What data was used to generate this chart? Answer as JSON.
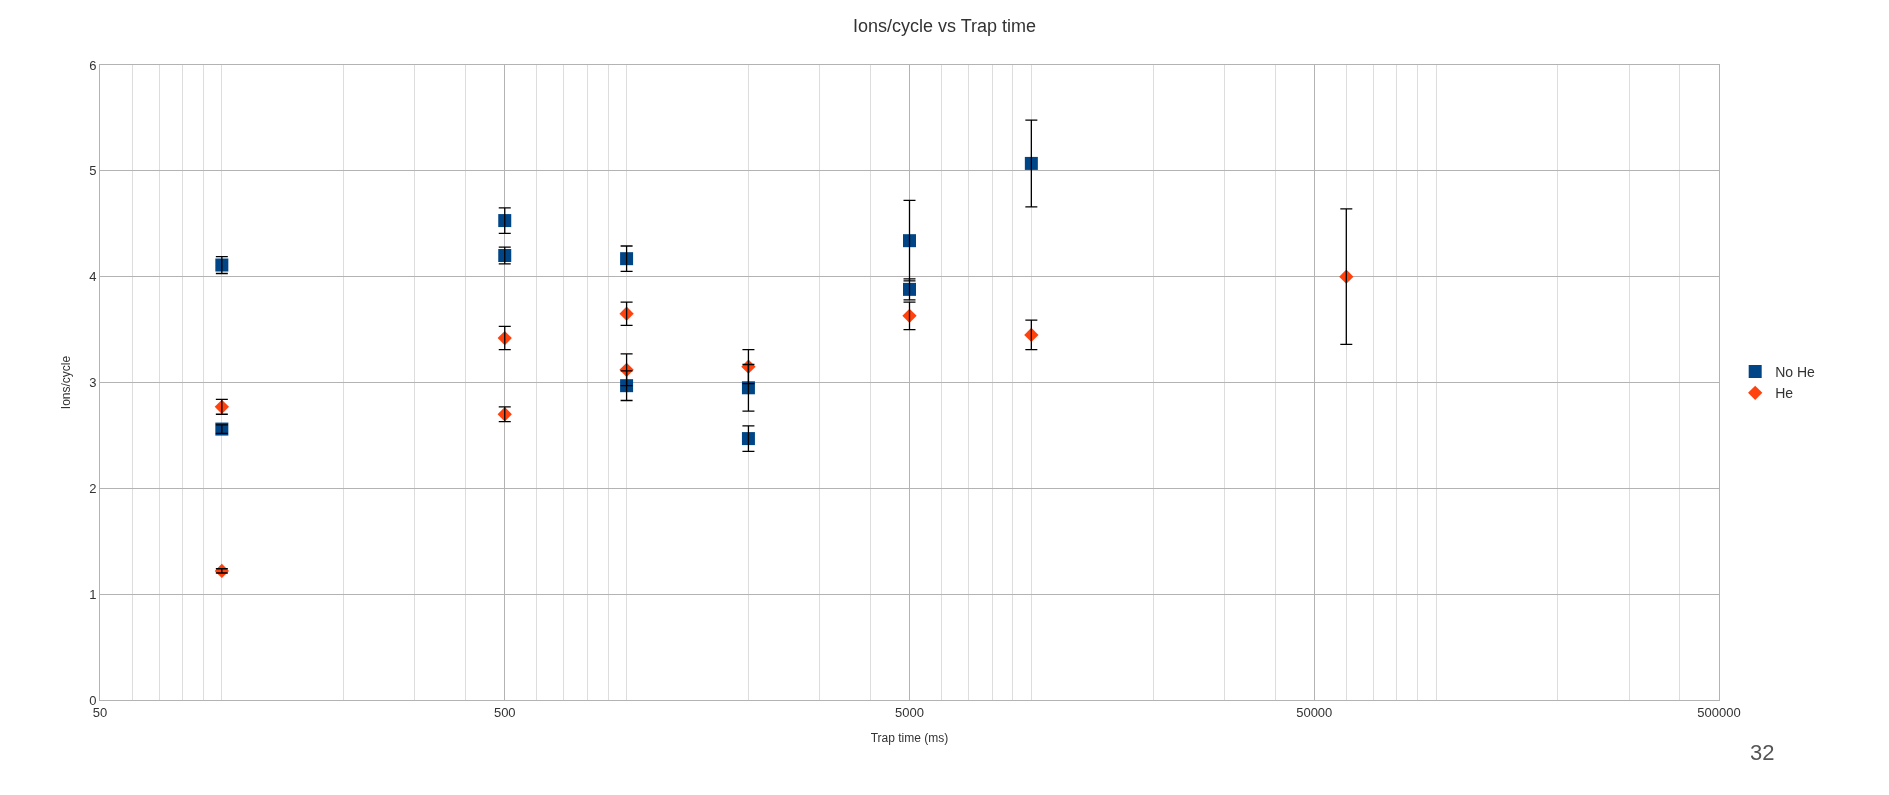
{
  "chart_data": {
    "type": "scatter",
    "title": "Ions/cycle vs Trap time",
    "xlabel": "Trap time (ms)",
    "ylabel": "Ions/cycle",
    "log": "x",
    "xlim": [
      50,
      500000
    ],
    "xticks": [
      50,
      {
        "value": 60,
        "label": null
      },
      {
        "value": 70,
        "label": null
      },
      {
        "value": 80,
        "label": null
      },
      {
        "value": 90,
        "label": null
      },
      {
        "value": 100,
        "label": null
      },
      {
        "value": 200,
        "label": null
      },
      {
        "value": 300,
        "label": null
      },
      {
        "value": 400,
        "label": null
      },
      500,
      {
        "value": 600,
        "label": null
      },
      {
        "value": 700,
        "label": null
      },
      {
        "value": 800,
        "label": null
      },
      {
        "value": 900,
        "label": null
      },
      {
        "value": 1000,
        "label": null
      },
      {
        "value": 2000,
        "label": null
      },
      {
        "value": 3000,
        "label": null
      },
      {
        "value": 4000,
        "label": null
      },
      5000,
      {
        "value": 6000,
        "label": null
      },
      {
        "value": 7000,
        "label": null
      },
      {
        "value": 8000,
        "label": null
      },
      {
        "value": 9000,
        "label": null
      },
      {
        "value": 10000,
        "label": null
      },
      {
        "value": 20000,
        "label": null
      },
      {
        "value": 30000,
        "label": null
      },
      {
        "value": 40000,
        "label": null
      },
      50000,
      {
        "value": 60000,
        "label": null
      },
      {
        "value": 70000,
        "label": null
      },
      {
        "value": 80000,
        "label": null
      },
      {
        "value": 90000,
        "label": null
      },
      {
        "value": 100000,
        "label": null
      },
      {
        "value": 200000,
        "label": null
      },
      {
        "value": 300000,
        "label": null
      },
      {
        "value": 400000,
        "label": null
      },
      500000
    ],
    "ylim": [
      0,
      6
    ],
    "yticks": [
      0,
      1,
      2,
      3,
      4,
      5,
      6
    ],
    "grid": true,
    "legend": "right",
    "series": [
      {
        "name": "No He",
        "color": "#004586",
        "marker": "square",
        "x": [
          100,
          100,
          500,
          500,
          1000,
          1000,
          2000,
          2000,
          5000,
          5000,
          10000
        ],
        "values": [
          4.11,
          2.56,
          4.53,
          4.2,
          4.17,
          2.97,
          2.95,
          2.47,
          4.34,
          3.88,
          5.07
        ],
        "errors": [
          0.08,
          0.04,
          0.12,
          0.08,
          0.12,
          0.14,
          0.22,
          0.12,
          0.38,
          0.1,
          0.41
        ]
      },
      {
        "name": "He",
        "color": "#ff420e",
        "marker": "diamond",
        "x": [
          100,
          100,
          500,
          500,
          1000,
          1000,
          2000,
          5000,
          10000,
          60000
        ],
        "values": [
          2.77,
          1.22,
          3.42,
          2.7,
          3.65,
          3.12,
          3.15,
          3.63,
          3.45,
          4.0
        ],
        "errors": [
          0.07,
          0.02,
          0.11,
          0.07,
          0.11,
          0.15,
          0.16,
          0.13,
          0.14,
          0.64
        ]
      }
    ],
    "annotations": [
      "32"
    ]
  }
}
